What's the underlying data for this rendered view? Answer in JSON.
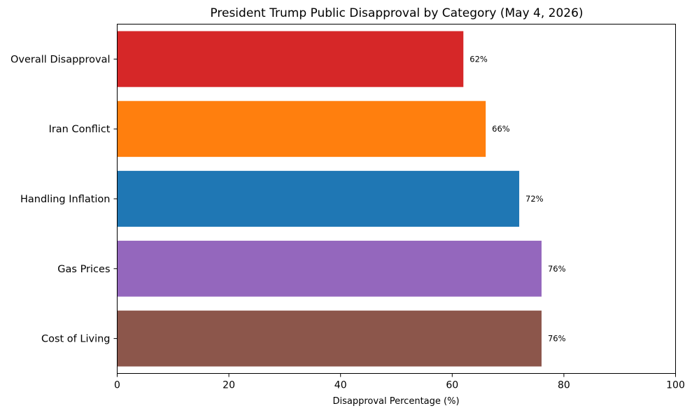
{
  "chart_data": {
    "type": "bar",
    "orientation": "horizontal",
    "title": "President Trump Public Disapproval by Category (May 4, 2026)",
    "xlabel": "Disapproval Percentage (%)",
    "ylabel": "",
    "xlim": [
      0,
      100
    ],
    "xticks": [
      "0",
      "20",
      "40",
      "60",
      "80",
      "100"
    ],
    "grid": false,
    "categories": [
      "Overall Disapproval",
      "Iran Conflict",
      "Handling Inflation",
      "Gas Prices",
      "Cost of Living"
    ],
    "values": [
      62,
      66,
      72,
      76,
      76
    ],
    "data_labels": [
      "62%",
      "66%",
      "72%",
      "76%",
      "76%"
    ],
    "colors": [
      "#d62728",
      "#ff7f0e",
      "#1f77b4",
      "#9467bd",
      "#8c564b"
    ]
  }
}
